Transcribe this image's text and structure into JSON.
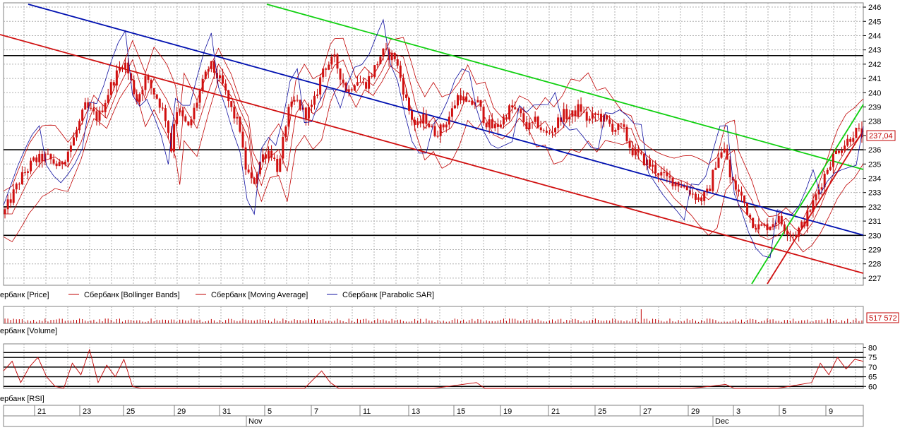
{
  "chart_data": [
    {
      "panel": "price",
      "type": "line",
      "subtype": "candlestick with overlays",
      "ylim": [
        226.5,
        246.3
      ],
      "y_ticks": [
        227,
        228,
        229,
        230,
        231,
        232,
        233,
        234,
        235,
        236,
        237,
        238,
        239,
        240,
        241,
        242,
        243,
        244,
        245,
        246
      ],
      "last_value_label": "237,04",
      "horizontal_levels": [
        242.6,
        236.0,
        232.0,
        230.0
      ],
      "legend": [
        {
          "label": "ербанк [Price]",
          "color": "#c00000",
          "style": "none"
        },
        {
          "label": "Сбербанк [Bollinger Bands]",
          "color": "#c00000",
          "style": "line"
        },
        {
          "label": "Сбербанк [Moving Average]",
          "color": "#c00000",
          "style": "line"
        },
        {
          "label": "Сбербанк [Parabolic SAR]",
          "color": "#1010a0",
          "style": "line"
        }
      ],
      "price_path": [
        [
          0,
          231.5
        ],
        [
          0.02,
          234
        ],
        [
          0.035,
          235.2
        ],
        [
          0.05,
          235.5
        ],
        [
          0.065,
          234.8
        ],
        [
          0.08,
          236.5
        ],
        [
          0.095,
          239
        ],
        [
          0.11,
          238.2
        ],
        [
          0.125,
          240.5
        ],
        [
          0.14,
          242.3
        ],
        [
          0.155,
          239.5
        ],
        [
          0.165,
          241
        ],
        [
          0.18,
          239.5
        ],
        [
          0.19,
          238
        ],
        [
          0.195,
          236
        ],
        [
          0.2,
          239
        ],
        [
          0.215,
          237.5
        ],
        [
          0.228,
          240
        ],
        [
          0.24,
          242
        ],
        [
          0.255,
          240.5
        ],
        [
          0.265,
          238.8
        ],
        [
          0.275,
          237.5
        ],
        [
          0.28,
          235
        ],
        [
          0.29,
          233.5
        ],
        [
          0.3,
          235.5
        ],
        [
          0.31,
          236
        ],
        [
          0.32,
          234.5
        ],
        [
          0.33,
          238.5
        ],
        [
          0.34,
          239.5
        ],
        [
          0.35,
          238.5
        ],
        [
          0.36,
          239
        ],
        [
          0.372,
          241.8
        ],
        [
          0.385,
          242.3
        ],
        [
          0.4,
          240
        ],
        [
          0.41,
          241
        ],
        [
          0.42,
          240.5
        ],
        [
          0.43,
          241.5
        ],
        [
          0.44,
          242.8
        ],
        [
          0.455,
          242.5
        ],
        [
          0.462,
          241
        ],
        [
          0.47,
          239
        ],
        [
          0.48,
          237.5
        ],
        [
          0.49,
          238.3
        ],
        [
          0.5,
          237.2
        ],
        [
          0.51,
          237.5
        ],
        [
          0.52,
          238.5
        ],
        [
          0.53,
          240
        ],
        [
          0.54,
          239
        ],
        [
          0.55,
          239.5
        ],
        [
          0.56,
          238
        ],
        [
          0.57,
          237.5
        ],
        [
          0.58,
          238
        ],
        [
          0.59,
          239
        ],
        [
          0.6,
          238.5
        ],
        [
          0.61,
          237.5
        ],
        [
          0.62,
          238
        ],
        [
          0.63,
          237
        ],
        [
          0.64,
          237.5
        ],
        [
          0.65,
          238.5
        ],
        [
          0.66,
          238.3
        ],
        [
          0.67,
          239
        ],
        [
          0.68,
          238
        ],
        [
          0.69,
          238.5
        ],
        [
          0.7,
          238
        ],
        [
          0.71,
          237.5
        ],
        [
          0.72,
          237.5
        ],
        [
          0.73,
          236
        ],
        [
          0.74,
          235.5
        ],
        [
          0.75,
          235
        ],
        [
          0.76,
          234.5
        ],
        [
          0.77,
          234
        ],
        [
          0.78,
          233.8
        ],
        [
          0.79,
          233.5
        ],
        [
          0.8,
          233
        ],
        [
          0.81,
          232.5
        ],
        [
          0.82,
          233
        ],
        [
          0.83,
          235.5
        ],
        [
          0.84,
          236
        ],
        [
          0.845,
          234
        ],
        [
          0.85,
          233.5
        ],
        [
          0.86,
          232.5
        ],
        [
          0.87,
          231
        ],
        [
          0.88,
          230.5
        ],
        [
          0.89,
          230.7
        ],
        [
          0.9,
          231.2
        ],
        [
          0.91,
          230.5
        ],
        [
          0.92,
          230
        ],
        [
          0.93,
          230.8
        ],
        [
          0.94,
          232
        ],
        [
          0.95,
          233.5
        ],
        [
          0.96,
          235
        ],
        [
          0.97,
          236
        ],
        [
          0.98,
          236.5
        ],
        [
          0.99,
          237.3
        ],
        [
          1,
          237.04
        ]
      ]
    },
    {
      "panel": "volume",
      "type": "bar",
      "last_value_label": "517 572",
      "legend": [
        {
          "label": "ербанк [Volume]",
          "color": "#c00000"
        }
      ]
    },
    {
      "panel": "rsi",
      "type": "line",
      "ylim": [
        59,
        82
      ],
      "y_ticks": [
        60,
        65,
        70,
        75,
        80
      ],
      "horizontal_levels": [
        60,
        65,
        70,
        75,
        77.5
      ],
      "legend": [
        {
          "label": "ербанк [RSI]",
          "color": "#c00000"
        }
      ],
      "rsi_path": [
        [
          0,
          68
        ],
        [
          0.01,
          73
        ],
        [
          0.02,
          62
        ],
        [
          0.03,
          70
        ],
        [
          0.04,
          75
        ],
        [
          0.05,
          65
        ],
        [
          0.06,
          60
        ],
        [
          0.07,
          59
        ],
        [
          0.08,
          72
        ],
        [
          0.09,
          66
        ],
        [
          0.1,
          79
        ],
        [
          0.11,
          62
        ],
        [
          0.12,
          71
        ],
        [
          0.13,
          65
        ],
        [
          0.14,
          74
        ],
        [
          0.15,
          60
        ],
        [
          0.16,
          59
        ],
        [
          0.2,
          59
        ],
        [
          0.25,
          59
        ],
        [
          0.3,
          59
        ],
        [
          0.35,
          59
        ],
        [
          0.37,
          68
        ],
        [
          0.38,
          62
        ],
        [
          0.39,
          59
        ],
        [
          0.45,
          59
        ],
        [
          0.5,
          59
        ],
        [
          0.55,
          62
        ],
        [
          0.56,
          59
        ],
        [
          0.6,
          59
        ],
        [
          0.7,
          59
        ],
        [
          0.8,
          59
        ],
        [
          0.84,
          61
        ],
        [
          0.85,
          59
        ],
        [
          0.9,
          59
        ],
        [
          0.94,
          62
        ],
        [
          0.95,
          72
        ],
        [
          0.96,
          66
        ],
        [
          0.97,
          75
        ],
        [
          0.98,
          69
        ],
        [
          0.99,
          74
        ],
        [
          1,
          73
        ]
      ]
    },
    {
      "panel": "time_axis",
      "day_labels": [
        "21",
        "23",
        "25",
        "29",
        "31",
        "5",
        "7",
        "11",
        "13",
        "15",
        "19",
        "21",
        "25",
        "27",
        "29",
        "3",
        "5",
        "9"
      ],
      "month_labels": [
        "Nov",
        "Dec"
      ]
    }
  ]
}
